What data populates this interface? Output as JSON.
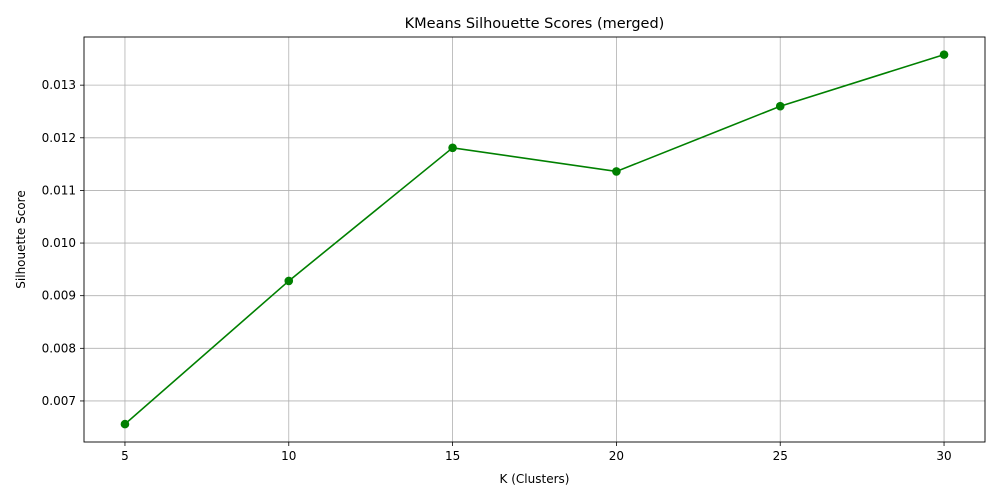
{
  "chart_data": {
    "type": "line",
    "title": "KMeans Silhouette Scores (merged)",
    "xlabel": "K (Clusters)",
    "ylabel": "Silhouette Score",
    "x": [
      5,
      10,
      15,
      20,
      25,
      30
    ],
    "series": [
      {
        "values": [
          0.00656,
          0.00928,
          0.01181,
          0.01136,
          0.0126,
          0.01358
        ],
        "color": "#008000",
        "marker": "circle"
      }
    ],
    "xlim": [
      3.75,
      31.25
    ],
    "ylim": [
      0.00622,
      0.013915
    ],
    "xticks": [
      5,
      10,
      15,
      20,
      25,
      30
    ],
    "xtick_labels": [
      "5",
      "10",
      "15",
      "20",
      "25",
      "30"
    ],
    "yticks": [
      0.007,
      0.008,
      0.009,
      0.01,
      0.011,
      0.012,
      0.013
    ],
    "ytick_labels": [
      "0.007",
      "0.008",
      "0.009",
      "0.010",
      "0.011",
      "0.012",
      "0.013"
    ],
    "grid": true,
    "grid_color": "#b0b0b0"
  }
}
